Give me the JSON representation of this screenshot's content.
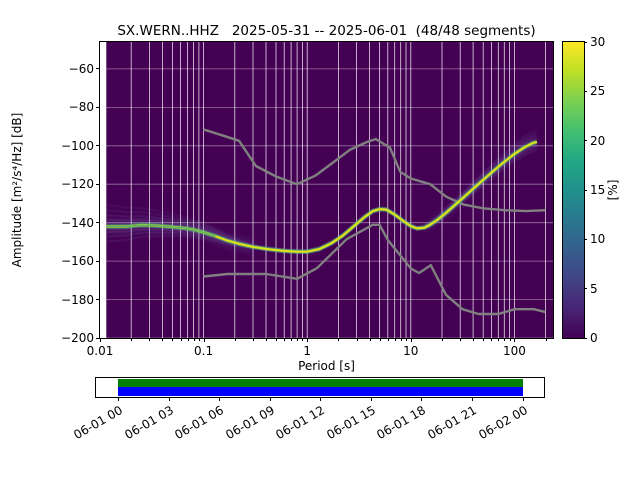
{
  "title": "SX.WERN..HHZ   2025-05-31 -- 2025-06-01  (48/48 segments)",
  "chart_data": {
    "type": "heatmap",
    "title": "SX.WERN..HHZ   2025-05-31 -- 2025-06-01  (48/48 segments)",
    "xlabel": "Period [s]",
    "ylabel": "Amplitude [m²/s⁴/Hz] [dB]",
    "xscale": "log",
    "xlim": [
      0.01,
      236
    ],
    "ylim": [
      -200,
      -46
    ],
    "grid": true,
    "plot_bg_color": "#440154",
    "data_min_period": 0.0115,
    "xticks": [
      {
        "value": 0.01,
        "label": "0.01"
      },
      {
        "value": 0.1,
        "label": "0.1"
      },
      {
        "value": 1,
        "label": "1"
      },
      {
        "value": 10,
        "label": "10"
      },
      {
        "value": 100,
        "label": "100"
      }
    ],
    "yticks": [
      {
        "value": -60,
        "label": "−60"
      },
      {
        "value": -80,
        "label": "−80"
      },
      {
        "value": -100,
        "label": "−100"
      },
      {
        "value": -120,
        "label": "−120"
      },
      {
        "value": -140,
        "label": "−140"
      },
      {
        "value": -160,
        "label": "−160"
      },
      {
        "value": -180,
        "label": "−180"
      },
      {
        "value": -200,
        "label": "−200"
      }
    ],
    "series": [
      {
        "name": "psd_mode_curve",
        "color": "#dde318",
        "points": [
          [
            0.0115,
            -142
          ],
          [
            0.018,
            -142
          ],
          [
            0.025,
            -141.2
          ],
          [
            0.035,
            -141.5
          ],
          [
            0.05,
            -142.2
          ],
          [
            0.065,
            -142.8
          ],
          [
            0.08,
            -143.6
          ],
          [
            0.1,
            -145
          ],
          [
            0.13,
            -147
          ],
          [
            0.17,
            -149.3
          ],
          [
            0.22,
            -151
          ],
          [
            0.3,
            -152.6
          ],
          [
            0.42,
            -153.8
          ],
          [
            0.6,
            -154.7
          ],
          [
            0.8,
            -155.1
          ],
          [
            1.0,
            -155.1
          ],
          [
            1.3,
            -153.8
          ],
          [
            1.7,
            -150.8
          ],
          [
            2.2,
            -146.8
          ],
          [
            2.8,
            -142
          ],
          [
            3.5,
            -137.5
          ],
          [
            4.3,
            -134
          ],
          [
            5,
            -133
          ],
          [
            5.8,
            -133.2
          ],
          [
            7,
            -135.8
          ],
          [
            8.5,
            -139.2
          ],
          [
            10,
            -141.8
          ],
          [
            11.5,
            -143
          ],
          [
            13.5,
            -142.6
          ],
          [
            15,
            -141.4
          ],
          [
            18,
            -138.6
          ],
          [
            22,
            -134.8
          ],
          [
            28,
            -129.8
          ],
          [
            36,
            -124.6
          ],
          [
            47,
            -119
          ],
          [
            60,
            -114
          ],
          [
            78,
            -108.8
          ],
          [
            100,
            -104.2
          ],
          [
            125,
            -100.8
          ],
          [
            150,
            -98.6
          ],
          [
            165,
            -98
          ]
        ]
      },
      {
        "name": "noise_model_high_nhnm",
        "color": "#808080",
        "points": [
          [
            0.1,
            -91.5
          ],
          [
            0.15,
            -94.5
          ],
          [
            0.22,
            -97.4
          ],
          [
            0.32,
            -110.5
          ],
          [
            0.5,
            -116
          ],
          [
            0.8,
            -120
          ],
          [
            1.2,
            -115.5
          ],
          [
            1.8,
            -108.5
          ],
          [
            2.6,
            -102
          ],
          [
            3.8,
            -98
          ],
          [
            4.6,
            -96.5
          ],
          [
            6.3,
            -101
          ],
          [
            7.9,
            -113.5
          ],
          [
            10,
            -117
          ],
          [
            15.4,
            -120
          ],
          [
            22,
            -126.5
          ],
          [
            32,
            -130.5
          ],
          [
            50,
            -132.5
          ],
          [
            80,
            -133.5
          ],
          [
            130,
            -134
          ],
          [
            200,
            -133.5
          ]
        ]
      },
      {
        "name": "noise_model_low_nlnm",
        "color": "#808080",
        "points": [
          [
            0.1,
            -168
          ],
          [
            0.17,
            -166.7
          ],
          [
            0.4,
            -166.7
          ],
          [
            0.8,
            -169.2
          ],
          [
            1.24,
            -163.7
          ],
          [
            2.4,
            -148.6
          ],
          [
            4.3,
            -141.1
          ],
          [
            5,
            -141.1
          ],
          [
            6,
            -149
          ],
          [
            10,
            -163.8
          ],
          [
            12,
            -166.2
          ],
          [
            15.6,
            -162.1
          ],
          [
            21.9,
            -177.5
          ],
          [
            31.6,
            -185
          ],
          [
            45,
            -187.5
          ],
          [
            70,
            -187.5
          ],
          [
            101,
            -185
          ],
          [
            154,
            -185
          ],
          [
            200,
            -186.5
          ]
        ]
      }
    ],
    "colorbar": {
      "label": "[%]",
      "min": 0,
      "max": 30,
      "ticks": [
        0,
        5,
        10,
        15,
        20,
        25,
        30
      ],
      "colormap_name": "viridis",
      "colormap": [
        "#440154",
        "#482475",
        "#414487",
        "#355f8d",
        "#2a788e",
        "#21918c",
        "#22a884",
        "#44bf70",
        "#7ad151",
        "#bddf26",
        "#fde725"
      ]
    }
  },
  "timeline": {
    "labels": [
      "06-01 00",
      "06-01 03",
      "06-01 06",
      "06-01 09",
      "06-01 12",
      "06-01 15",
      "06-01 18",
      "06-01 21",
      "06-02 00"
    ],
    "green": "#008000",
    "blue": "#0000ff",
    "coverage_start": 0.049,
    "coverage_end": 0.952
  }
}
